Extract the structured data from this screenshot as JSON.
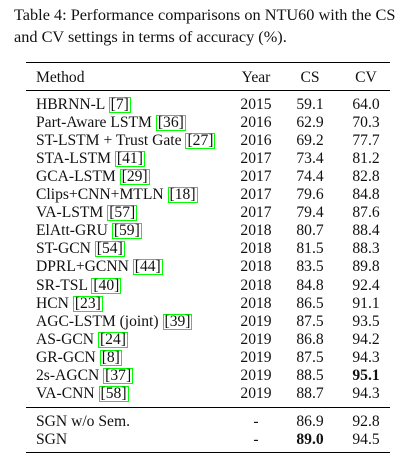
{
  "caption": "Table 4: Performance comparisons on NTU60 with the CS and CV settings in terms of accuracy (%).",
  "headers": {
    "method": "Method",
    "year": "Year",
    "cs": "CS",
    "cv": "CV"
  },
  "colors": {
    "citation_border": "#00ff00",
    "rules": "#000000"
  },
  "rows": [
    {
      "method": "HBRNN-L",
      "cite": "[7]",
      "year": "2015",
      "cs": "59.1",
      "cv": "64.0"
    },
    {
      "method": "Part-Aware LSTM",
      "cite": "[36]",
      "year": "2016",
      "cs": "62.9",
      "cv": "70.3"
    },
    {
      "method": "ST-LSTM + Trust Gate",
      "cite": "[27]",
      "year": "2016",
      "cs": "69.2",
      "cv": "77.7"
    },
    {
      "method": "STA-LSTM",
      "cite": "[41]",
      "year": "2017",
      "cs": "73.4",
      "cv": "81.2"
    },
    {
      "method": "GCA-LSTM",
      "cite": "[29]",
      "year": "2017",
      "cs": "74.4",
      "cv": "82.8"
    },
    {
      "method": "Clips+CNN+MTLN",
      "cite": "[18]",
      "year": "2017",
      "cs": "79.6",
      "cv": "84.8"
    },
    {
      "method": "VA-LSTM",
      "cite": "[57]",
      "year": "2017",
      "cs": "79.4",
      "cv": "87.6"
    },
    {
      "method": "ElAtt-GRU",
      "cite": "[59]",
      "year": "2018",
      "cs": "80.7",
      "cv": "88.4"
    },
    {
      "method": "ST-GCN",
      "cite": "[54]",
      "year": "2018",
      "cs": "81.5",
      "cv": "88.3"
    },
    {
      "method": "DPRL+GCNN",
      "cite": "[44]",
      "year": "2018",
      "cs": "83.5",
      "cv": "89.8"
    },
    {
      "method": "SR-TSL",
      "cite": "[40]",
      "year": "2018",
      "cs": "84.8",
      "cv": "92.4"
    },
    {
      "method": "HCN",
      "cite": "[23]",
      "year": "2018",
      "cs": "86.5",
      "cv": "91.1"
    },
    {
      "method": "AGC-LSTM (joint)",
      "cite": "[39]",
      "year": "2019",
      "cs": "87.5",
      "cv": "93.5"
    },
    {
      "method": "AS-GCN",
      "cite": "[24]",
      "year": "2019",
      "cs": "86.8",
      "cv": "94.2"
    },
    {
      "method": "GR-GCN",
      "cite": "[8]",
      "year": "2019",
      "cs": "87.5",
      "cv": "94.3"
    },
    {
      "method": "2s-AGCN",
      "cite": "[37]",
      "year": "2019",
      "cs": "88.5",
      "cv": "95.1"
    },
    {
      "method": "VA-CNN",
      "cite": "[58]",
      "year": "2019",
      "cs": "88.7",
      "cv": "94.3"
    }
  ],
  "ours": [
    {
      "method": "SGN w/o Sem.",
      "year": "-",
      "cs": "86.9",
      "cv": "92.8"
    },
    {
      "method": "SGN",
      "year": "-",
      "cs": "89.0",
      "cv": "94.5"
    }
  ]
}
